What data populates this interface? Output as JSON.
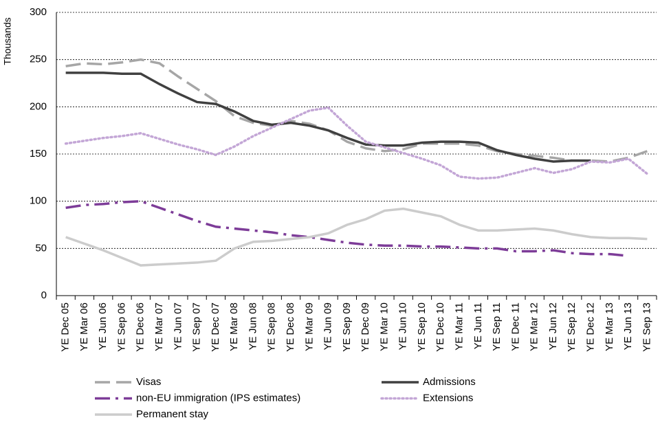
{
  "chart_data": {
    "type": "line",
    "y_label": "Thousands",
    "categories": [
      "YE Dec 05",
      "YE Mar 06",
      "YE Jun 06",
      "YE Sep 06",
      "YE Dec 06",
      "YE Mar 07",
      "YE Jun 07",
      "YE Sep 07",
      "YE Dec 07",
      "YE Mar 08",
      "YE Jun 08",
      "YE Sep 08",
      "YE Dec 08",
      "YE Mar 09",
      "YE Jun 09",
      "YE Sep 09",
      "YE Dec 09",
      "YE Mar 10",
      "YE Jun 10",
      "YE Sep 10",
      "YE Dec 10",
      "YE Mar 11",
      "YE Jun 11",
      "YE Sep 11",
      "YE Dec 11",
      "YE Mar 12",
      "YE Jun 12",
      "YE Sep 12",
      "YE Dec 12",
      "YE Mar 13",
      "YE Jun 13",
      "YE Sep 13"
    ],
    "series": [
      {
        "name": "Visas",
        "color": "#a6a6a6",
        "line_style": "dashed",
        "values": [
          243,
          246,
          245,
          247,
          250,
          246,
          232,
          219,
          206,
          190,
          183,
          180,
          185,
          182,
          175,
          163,
          156,
          153,
          155,
          161,
          161,
          161,
          159,
          153,
          150,
          148,
          146,
          143,
          143,
          142,
          146,
          153
        ]
      },
      {
        "name": "Admissions",
        "color": "#404040",
        "line_style": "solid",
        "values": [
          236,
          236,
          236,
          235,
          235,
          224,
          214,
          205,
          203,
          195,
          185,
          181,
          183,
          180,
          175,
          167,
          160,
          159,
          159,
          162,
          163,
          163,
          162,
          154,
          149,
          145,
          142,
          143,
          143,
          null,
          null,
          null
        ]
      },
      {
        "name": "non-EU immigration (IPS estimates)",
        "color": "#7d3c98",
        "line_style": "dash-dot",
        "values": [
          93,
          96,
          97,
          99,
          100,
          93,
          86,
          79,
          73,
          71,
          69,
          67,
          64,
          62,
          59,
          56,
          54,
          53,
          53,
          52,
          52,
          51,
          50,
          50,
          47,
          47,
          48,
          45,
          44,
          44,
          42,
          null
        ]
      },
      {
        "name": "Extensions",
        "color": "#c3a6d6",
        "line_style": "dotted",
        "values": [
          161,
          164,
          167,
          169,
          172,
          166,
          160,
          155,
          149,
          158,
          169,
          178,
          187,
          196,
          199,
          180,
          163,
          157,
          151,
          145,
          138,
          126,
          124,
          125,
          130,
          135,
          130,
          134,
          142,
          141,
          145,
          129
        ]
      },
      {
        "name": "Permanent stay",
        "color": "#cccccc",
        "line_style": "solid",
        "values": [
          62,
          55,
          48,
          40,
          32,
          33,
          34,
          35,
          37,
          50,
          57,
          58,
          60,
          62,
          66,
          75,
          81,
          90,
          92,
          88,
          84,
          75,
          69,
          69,
          70,
          71,
          69,
          65,
          62,
          61,
          61,
          60
        ]
      }
    ],
    "ylim": [
      0,
      300
    ],
    "yticks": [
      0,
      50,
      100,
      150,
      200,
      250,
      300
    ],
    "grid": true,
    "legend": "bottom"
  }
}
